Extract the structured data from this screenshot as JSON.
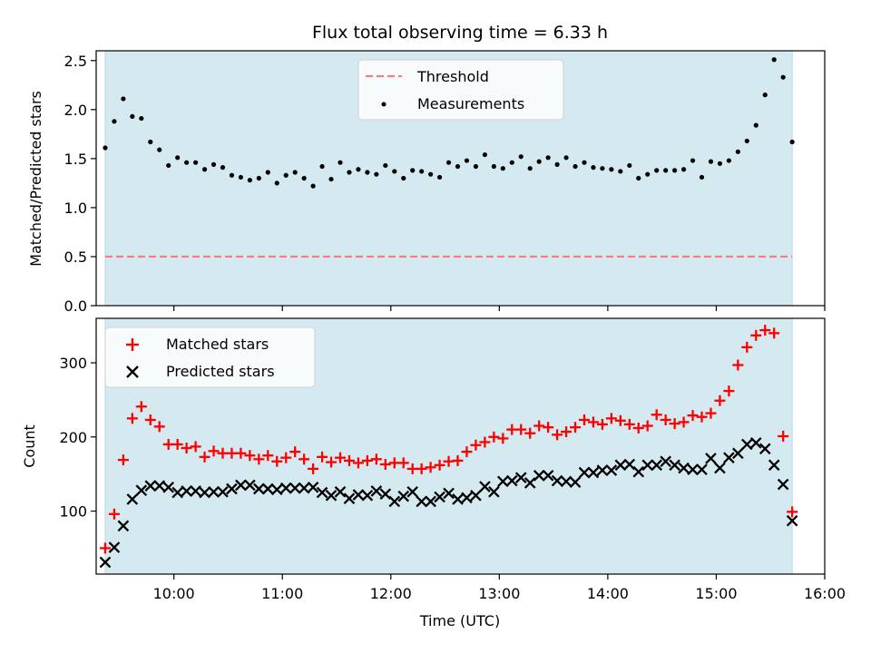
{
  "figure": {
    "title": "Flux total observing time = 6.33 h",
    "xlabel": "Time (UTC)",
    "x_tick_labels": [
      "10:00",
      "11:00",
      "12:00",
      "13:00",
      "14:00",
      "15:00",
      "16:00"
    ],
    "observing_span_color": "#d4eaf0"
  },
  "chart_data": [
    {
      "type": "scatter",
      "title": "Flux total observing time = 6.33 h",
      "xlabel": "",
      "ylabel": "Matched/Predicted stars",
      "xlim": [
        "09:17",
        "16:00"
      ],
      "ylim": [
        0.0,
        2.6
      ],
      "yticks": [
        0.0,
        0.5,
        1.0,
        1.5,
        2.0,
        2.5
      ],
      "y_tick_labels": [
        "0.0",
        "0.5",
        "1.0",
        "1.5",
        "2.0",
        "2.5"
      ],
      "legend_position": "top-center",
      "shaded_span": [
        "09:22",
        "15:42"
      ],
      "threshold": {
        "name": "Threshold",
        "value": 0.5,
        "color": "#f08080",
        "style": "dashed"
      },
      "series": [
        {
          "name": "Measurements",
          "color": "#000000",
          "marker": "dot",
          "x": [
            "09:22",
            "09:27",
            "09:32",
            "09:37",
            "09:42",
            "09:47",
            "09:52",
            "09:57",
            "10:02",
            "10:07",
            "10:12",
            "10:17",
            "10:22",
            "10:27",
            "10:32",
            "10:37",
            "10:42",
            "10:47",
            "10:52",
            "10:57",
            "11:02",
            "11:07",
            "11:12",
            "11:17",
            "11:22",
            "11:27",
            "11:32",
            "11:37",
            "11:42",
            "11:47",
            "11:52",
            "11:57",
            "12:02",
            "12:07",
            "12:12",
            "12:17",
            "12:22",
            "12:27",
            "12:32",
            "12:37",
            "12:42",
            "12:47",
            "12:52",
            "12:57",
            "13:02",
            "13:07",
            "13:12",
            "13:17",
            "13:22",
            "13:27",
            "13:32",
            "13:37",
            "13:42",
            "13:47",
            "13:52",
            "13:57",
            "14:02",
            "14:07",
            "14:12",
            "14:17",
            "14:22",
            "14:27",
            "14:32",
            "14:37",
            "14:42",
            "14:47",
            "14:52",
            "14:57",
            "15:02",
            "15:07",
            "15:12",
            "15:17",
            "15:22",
            "15:27",
            "15:32",
            "15:37",
            "15:42"
          ],
          "y": [
            1.61,
            1.88,
            2.11,
            1.93,
            1.91,
            1.67,
            1.59,
            1.43,
            1.51,
            1.46,
            1.46,
            1.39,
            1.44,
            1.41,
            1.33,
            1.31,
            1.28,
            1.3,
            1.36,
            1.25,
            1.33,
            1.36,
            1.3,
            1.22,
            1.42,
            1.29,
            1.46,
            1.36,
            1.39,
            1.36,
            1.34,
            1.43,
            1.37,
            1.3,
            1.38,
            1.37,
            1.34,
            1.31,
            1.46,
            1.42,
            1.48,
            1.42,
            1.54,
            1.42,
            1.4,
            1.46,
            1.52,
            1.4,
            1.47,
            1.51,
            1.44,
            1.51,
            1.42,
            1.46,
            1.41,
            1.4,
            1.39,
            1.37,
            1.43,
            1.3,
            1.34,
            1.38,
            1.38,
            1.38,
            1.39,
            1.48,
            1.31,
            1.47,
            1.45,
            1.48,
            1.57,
            1.68,
            1.84,
            2.15,
            2.51,
            2.33,
            1.67
          ]
        }
      ]
    },
    {
      "type": "scatter",
      "title": "",
      "xlabel": "Time (UTC)",
      "ylabel": "Count",
      "xlim": [
        "09:17",
        "16:00"
      ],
      "ylim": [
        15,
        360
      ],
      "yticks": [
        100,
        200,
        300
      ],
      "y_tick_labels": [
        "100",
        "200",
        "300"
      ],
      "legend_position": "top-left",
      "shaded_span": [
        "09:22",
        "15:42"
      ],
      "series": [
        {
          "name": "Matched stars",
          "color": "#ff0000",
          "marker": "plus",
          "x": [
            "09:22",
            "09:27",
            "09:32",
            "09:37",
            "09:42",
            "09:47",
            "09:52",
            "09:57",
            "10:02",
            "10:07",
            "10:12",
            "10:17",
            "10:22",
            "10:27",
            "10:32",
            "10:37",
            "10:42",
            "10:47",
            "10:52",
            "10:57",
            "11:02",
            "11:07",
            "11:12",
            "11:17",
            "11:22",
            "11:27",
            "11:32",
            "11:37",
            "11:42",
            "11:47",
            "11:52",
            "11:57",
            "12:02",
            "12:07",
            "12:12",
            "12:17",
            "12:22",
            "12:27",
            "12:32",
            "12:37",
            "12:42",
            "12:47",
            "12:52",
            "12:57",
            "13:02",
            "13:07",
            "13:12",
            "13:17",
            "13:22",
            "13:27",
            "13:32",
            "13:37",
            "13:42",
            "13:47",
            "13:52",
            "13:57",
            "14:02",
            "14:07",
            "14:12",
            "14:17",
            "14:22",
            "14:27",
            "14:32",
            "14:37",
            "14:42",
            "14:47",
            "14:52",
            "14:57",
            "15:02",
            "15:07",
            "15:12",
            "15:17",
            "15:22",
            "15:27",
            "15:32",
            "15:37",
            "15:42"
          ],
          "y": [
            50,
            96,
            169,
            225,
            241,
            223,
            214,
            190,
            190,
            185,
            187,
            173,
            181,
            178,
            178,
            178,
            175,
            170,
            175,
            167,
            172,
            180,
            170,
            157,
            173,
            166,
            172,
            168,
            165,
            168,
            170,
            163,
            165,
            165,
            157,
            157,
            159,
            162,
            167,
            168,
            180,
            189,
            193,
            200,
            198,
            210,
            210,
            205,
            215,
            213,
            203,
            207,
            213,
            223,
            220,
            217,
            225,
            222,
            217,
            212,
            215,
            230,
            223,
            218,
            220,
            229,
            227,
            232,
            249,
            262,
            297,
            321,
            337,
            344,
            340,
            201,
            99
          ]
        },
        {
          "name": "Predicted stars",
          "color": "#000000",
          "marker": "x",
          "x": [
            "09:22",
            "09:27",
            "09:32",
            "09:37",
            "09:42",
            "09:47",
            "09:52",
            "09:57",
            "10:02",
            "10:07",
            "10:12",
            "10:17",
            "10:22",
            "10:27",
            "10:32",
            "10:37",
            "10:42",
            "10:47",
            "10:52",
            "10:57",
            "11:02",
            "11:07",
            "11:12",
            "11:17",
            "11:22",
            "11:27",
            "11:32",
            "11:37",
            "11:42",
            "11:47",
            "11:52",
            "11:57",
            "12:02",
            "12:07",
            "12:12",
            "12:17",
            "12:22",
            "12:27",
            "12:32",
            "12:37",
            "12:42",
            "12:47",
            "12:52",
            "12:57",
            "13:02",
            "13:07",
            "13:12",
            "13:17",
            "13:22",
            "13:27",
            "13:32",
            "13:37",
            "13:42",
            "13:47",
            "13:52",
            "13:57",
            "14:02",
            "14:07",
            "14:12",
            "14:17",
            "14:22",
            "14:27",
            "14:32",
            "14:37",
            "14:42",
            "14:47",
            "14:52",
            "14:57",
            "15:02",
            "15:07",
            "15:12",
            "15:17",
            "15:22",
            "15:27",
            "15:32",
            "15:37",
            "15:42"
          ],
          "y": [
            31,
            51,
            80,
            116,
            128,
            134,
            134,
            132,
            125,
            127,
            127,
            125,
            126,
            126,
            130,
            135,
            135,
            130,
            130,
            129,
            131,
            131,
            131,
            132,
            125,
            121,
            126,
            117,
            122,
            121,
            127,
            123,
            113,
            120,
            126,
            113,
            113,
            119,
            124,
            116,
            118,
            121,
            133,
            126,
            140,
            141,
            145,
            138,
            148,
            148,
            141,
            140,
            139,
            152,
            152,
            155,
            155,
            162,
            163,
            153,
            162,
            162,
            167,
            162,
            158,
            156,
            156,
            171,
            158,
            172,
            178,
            190,
            192,
            184,
            162,
            136,
            87
          ]
        }
      ]
    }
  ]
}
